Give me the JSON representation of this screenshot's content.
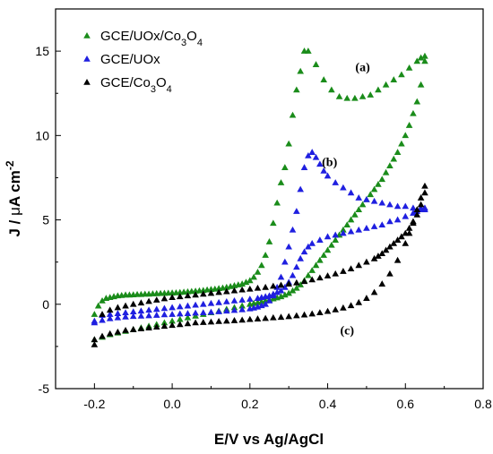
{
  "chart_data": {
    "type": "scatter",
    "xlabel": "E/V vs Ag/AgCl",
    "ylabel_parts": [
      "J / ",
      "μ",
      "A cm",
      "-2"
    ],
    "xlim": [
      -0.3,
      0.8
    ],
    "ylim": [
      -5,
      17.5
    ],
    "xticks": [
      -0.2,
      0.0,
      0.2,
      0.4,
      0.6,
      0.8
    ],
    "xtick_labels": [
      "-0.2",
      "0.0",
      "0.2",
      "0.4",
      "0.6",
      "0.8"
    ],
    "yticks": [
      -5,
      0,
      5,
      10,
      15
    ],
    "ytick_labels": [
      "-5",
      "0",
      "5",
      "10",
      "15"
    ],
    "grid": false,
    "legend_position": "top-left",
    "series": [
      {
        "name_parts": [
          "GCE/UOx/Co",
          "3",
          "O",
          "4"
        ],
        "color": "#1a8c1a",
        "x": [
          -0.2,
          -0.19,
          -0.18,
          -0.17,
          -0.16,
          -0.15,
          -0.14,
          -0.13,
          -0.12,
          -0.11,
          -0.1,
          -0.09,
          -0.08,
          -0.07,
          -0.06,
          -0.05,
          -0.04,
          -0.03,
          -0.02,
          -0.01,
          0.0,
          0.01,
          0.02,
          0.03,
          0.04,
          0.05,
          0.06,
          0.07,
          0.08,
          0.09,
          0.1,
          0.11,
          0.12,
          0.13,
          0.14,
          0.15,
          0.16,
          0.17,
          0.18,
          0.19,
          0.2,
          0.21,
          0.22,
          0.23,
          0.24,
          0.25,
          0.26,
          0.27,
          0.28,
          0.29,
          0.3,
          0.31,
          0.32,
          0.33,
          0.34,
          0.35,
          0.37,
          0.39,
          0.41,
          0.43,
          0.45,
          0.47,
          0.49,
          0.51,
          0.53,
          0.55,
          0.57,
          0.59,
          0.61,
          0.63,
          0.64,
          0.65,
          0.65,
          0.64,
          0.63,
          0.62,
          0.61,
          0.6,
          0.59,
          0.58,
          0.57,
          0.56,
          0.55,
          0.54,
          0.53,
          0.52,
          0.51,
          0.5,
          0.49,
          0.48,
          0.47,
          0.46,
          0.45,
          0.44,
          0.43,
          0.42,
          0.41,
          0.4,
          0.39,
          0.38,
          0.37,
          0.36,
          0.35,
          0.34,
          0.33,
          0.32,
          0.31,
          0.3,
          0.29,
          0.28,
          0.27,
          0.26,
          0.25,
          0.24,
          0.23,
          0.22,
          0.21,
          0.2,
          0.18,
          0.16,
          0.14,
          0.12,
          0.1,
          0.08,
          0.06,
          0.04,
          0.02,
          0.0,
          -0.02,
          -0.04,
          -0.06,
          -0.08,
          -0.1,
          -0.12,
          -0.14,
          -0.16,
          -0.18,
          -0.2
        ],
        "y": [
          -0.6,
          -0.1,
          0.2,
          0.35,
          0.4,
          0.45,
          0.5,
          0.52,
          0.55,
          0.55,
          0.56,
          0.58,
          0.58,
          0.6,
          0.6,
          0.62,
          0.63,
          0.64,
          0.65,
          0.66,
          0.67,
          0.68,
          0.7,
          0.72,
          0.74,
          0.76,
          0.78,
          0.8,
          0.82,
          0.85,
          0.88,
          0.9,
          0.93,
          0.96,
          1.0,
          1.05,
          1.1,
          1.15,
          1.2,
          1.3,
          1.4,
          1.6,
          1.9,
          2.3,
          2.9,
          3.7,
          4.8,
          6.0,
          7.2,
          8.1,
          9.5,
          11.2,
          12.7,
          13.8,
          15.0,
          15.0,
          14.2,
          13.3,
          12.7,
          12.3,
          12.2,
          12.2,
          12.3,
          12.4,
          12.7,
          13.0,
          13.3,
          13.6,
          14.0,
          14.4,
          14.6,
          14.7,
          14.4,
          13.0,
          12.0,
          11.3,
          10.6,
          10.0,
          9.5,
          9.0,
          8.6,
          8.2,
          7.8,
          7.4,
          7.1,
          6.8,
          6.5,
          6.2,
          5.9,
          5.6,
          5.3,
          5.0,
          4.7,
          4.4,
          4.1,
          3.8,
          3.5,
          3.2,
          2.9,
          2.6,
          2.3,
          2.0,
          1.7,
          1.4,
          1.15,
          0.95,
          0.8,
          0.65,
          0.55,
          0.45,
          0.38,
          0.32,
          0.26,
          0.2,
          0.15,
          0.1,
          0.05,
          0.0,
          -0.1,
          -0.2,
          -0.3,
          -0.4,
          -0.5,
          -0.6,
          -0.7,
          -0.8,
          -0.9,
          -1.0,
          -1.1,
          -1.2,
          -1.3,
          -1.4,
          -1.5,
          -1.6,
          -1.7,
          -1.8,
          -1.95,
          -2.1
        ]
      },
      {
        "name_parts": [
          "GCE/UOx"
        ],
        "color": "#1f1fe0",
        "x": [
          -0.2,
          -0.18,
          -0.16,
          -0.14,
          -0.12,
          -0.1,
          -0.08,
          -0.06,
          -0.04,
          -0.02,
          0.0,
          0.02,
          0.04,
          0.06,
          0.08,
          0.1,
          0.12,
          0.14,
          0.16,
          0.18,
          0.2,
          0.21,
          0.22,
          0.23,
          0.24,
          0.25,
          0.26,
          0.27,
          0.28,
          0.29,
          0.3,
          0.31,
          0.32,
          0.33,
          0.34,
          0.35,
          0.36,
          0.37,
          0.38,
          0.39,
          0.4,
          0.42,
          0.44,
          0.46,
          0.48,
          0.5,
          0.52,
          0.54,
          0.56,
          0.58,
          0.6,
          0.62,
          0.64,
          0.65,
          0.65,
          0.64,
          0.63,
          0.62,
          0.6,
          0.58,
          0.56,
          0.54,
          0.52,
          0.5,
          0.48,
          0.46,
          0.44,
          0.42,
          0.4,
          0.38,
          0.36,
          0.35,
          0.34,
          0.33,
          0.32,
          0.31,
          0.3,
          0.29,
          0.28,
          0.27,
          0.26,
          0.25,
          0.24,
          0.23,
          0.22,
          0.2,
          0.18,
          0.16,
          0.14,
          0.12,
          0.1,
          0.08,
          0.06,
          0.04,
          0.02,
          0.0,
          -0.02,
          -0.04,
          -0.06,
          -0.08,
          -0.1,
          -0.12,
          -0.14,
          -0.16,
          -0.18,
          -0.2
        ],
        "y": [
          -1.1,
          -0.95,
          -0.85,
          -0.8,
          -0.75,
          -0.72,
          -0.7,
          -0.68,
          -0.65,
          -0.62,
          -0.6,
          -0.57,
          -0.55,
          -0.52,
          -0.5,
          -0.47,
          -0.44,
          -0.4,
          -0.36,
          -0.32,
          -0.27,
          -0.22,
          -0.16,
          -0.08,
          0.0,
          0.2,
          0.5,
          1.0,
          1.6,
          2.5,
          3.4,
          4.4,
          5.5,
          6.8,
          8.1,
          8.8,
          9.0,
          8.7,
          8.3,
          7.9,
          7.6,
          7.2,
          6.9,
          6.6,
          6.3,
          6.2,
          6.1,
          6.0,
          5.9,
          5.8,
          5.8,
          5.7,
          5.7,
          5.6,
          5.7,
          5.6,
          5.5,
          5.4,
          5.2,
          5.0,
          4.9,
          4.7,
          4.6,
          4.5,
          4.4,
          4.3,
          4.2,
          4.1,
          4.0,
          3.8,
          3.6,
          3.4,
          3.1,
          2.7,
          2.2,
          1.7,
          1.3,
          1.0,
          0.8,
          0.7,
          0.6,
          0.5,
          0.45,
          0.4,
          0.35,
          0.3,
          0.25,
          0.2,
          0.15,
          0.1,
          0.05,
          0.0,
          -0.05,
          -0.1,
          -0.15,
          -0.2,
          -0.25,
          -0.3,
          -0.35,
          -0.4,
          -0.45,
          -0.5,
          -0.55,
          -0.6,
          -0.65,
          -1.0
        ]
      },
      {
        "name_parts": [
          "GCE/Co",
          "3",
          "O",
          "4"
        ],
        "color": "#000000",
        "x": [
          -0.2,
          -0.18,
          -0.16,
          -0.14,
          -0.12,
          -0.1,
          -0.08,
          -0.06,
          -0.04,
          -0.02,
          0.0,
          0.02,
          0.04,
          0.06,
          0.08,
          0.1,
          0.12,
          0.14,
          0.16,
          0.18,
          0.2,
          0.22,
          0.24,
          0.26,
          0.28,
          0.3,
          0.32,
          0.34,
          0.36,
          0.38,
          0.4,
          0.42,
          0.44,
          0.46,
          0.48,
          0.5,
          0.52,
          0.54,
          0.56,
          0.58,
          0.6,
          0.61,
          0.62,
          0.63,
          0.64,
          0.65,
          0.65,
          0.64,
          0.63,
          0.62,
          0.61,
          0.6,
          0.59,
          0.58,
          0.57,
          0.56,
          0.55,
          0.54,
          0.53,
          0.52,
          0.5,
          0.48,
          0.46,
          0.44,
          0.42,
          0.4,
          0.38,
          0.36,
          0.34,
          0.32,
          0.3,
          0.28,
          0.26,
          0.24,
          0.22,
          0.2,
          0.18,
          0.16,
          0.14,
          0.12,
          0.1,
          0.08,
          0.06,
          0.04,
          0.02,
          0.0,
          -0.02,
          -0.04,
          -0.06,
          -0.08,
          -0.1,
          -0.12,
          -0.14,
          -0.16,
          -0.18,
          -0.2
        ],
        "y": [
          -2.4,
          -1.9,
          -1.75,
          -1.65,
          -1.55,
          -1.5,
          -1.45,
          -1.4,
          -1.35,
          -1.3,
          -1.25,
          -1.2,
          -1.15,
          -1.1,
          -1.08,
          -1.05,
          -1.02,
          -1.0,
          -0.97,
          -0.94,
          -0.9,
          -0.87,
          -0.84,
          -0.8,
          -0.77,
          -0.73,
          -0.68,
          -0.63,
          -0.57,
          -0.5,
          -0.42,
          -0.33,
          -0.22,
          -0.08,
          0.1,
          0.35,
          0.7,
          1.2,
          1.8,
          2.6,
          3.6,
          4.2,
          4.9,
          5.6,
          6.3,
          7.0,
          6.6,
          5.9,
          5.3,
          4.8,
          4.5,
          4.2,
          4.0,
          3.8,
          3.6,
          3.4,
          3.2,
          3.0,
          2.85,
          2.7,
          2.5,
          2.3,
          2.1,
          1.95,
          1.8,
          1.68,
          1.56,
          1.45,
          1.35,
          1.27,
          1.2,
          1.13,
          1.07,
          1.0,
          0.95,
          0.9,
          0.85,
          0.8,
          0.75,
          0.7,
          0.65,
          0.6,
          0.55,
          0.5,
          0.45,
          0.4,
          0.33,
          0.25,
          0.17,
          0.08,
          0.0,
          -0.1,
          -0.2,
          -0.35,
          -0.6,
          -2.1
        ]
      }
    ],
    "annotations": [
      {
        "text": "(a)",
        "x": 0.49,
        "y": 13.8
      },
      {
        "text": "(b)",
        "x": 0.405,
        "y": 8.2
      },
      {
        "text": "(c)",
        "x": 0.45,
        "y": -1.8
      }
    ]
  }
}
